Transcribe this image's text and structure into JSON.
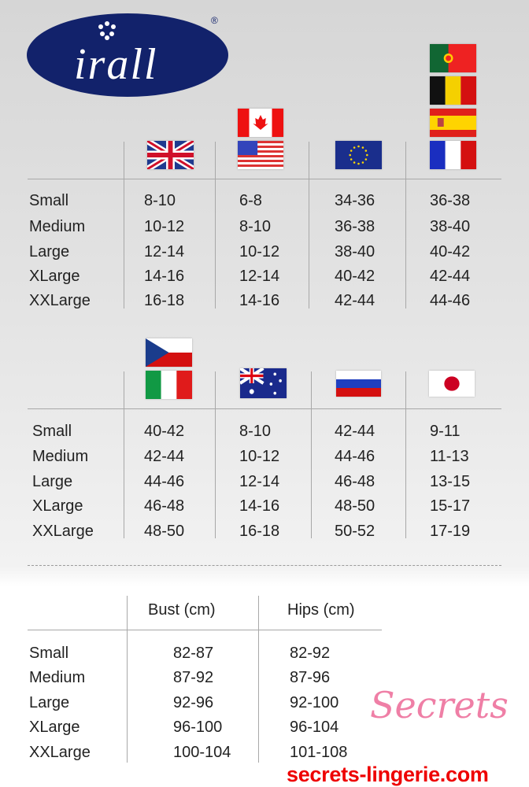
{
  "brand": {
    "name": "irall",
    "registered": "®"
  },
  "table1": {
    "columns": [
      {
        "flags": [
          "uk-flag"
        ]
      },
      {
        "flags": [
          "canada-flag",
          "usa-flag"
        ]
      },
      {
        "flags": [
          "eu-flag"
        ]
      },
      {
        "flags": [
          "portugal-flag",
          "belgium-flag",
          "spain-flag",
          "france-flag"
        ]
      }
    ],
    "rows": [
      {
        "size": "Small",
        "values": [
          "8-10",
          "6-8",
          "34-36",
          "36-38"
        ]
      },
      {
        "size": "Medium",
        "values": [
          "10-12",
          "8-10",
          "36-38",
          "38-40"
        ]
      },
      {
        "size": "Large",
        "values": [
          "12-14",
          "10-12",
          "38-40",
          "40-42"
        ]
      },
      {
        "size": "XLarge",
        "values": [
          "14-16",
          "12-14",
          "40-42",
          "42-44"
        ]
      },
      {
        "size": "XXLarge",
        "values": [
          "16-18",
          "14-16",
          "42-44",
          "44-46"
        ]
      }
    ]
  },
  "table2": {
    "columns": [
      {
        "flags": [
          "czech-flag",
          "italy-flag"
        ]
      },
      {
        "flags": [
          "australia-flag"
        ]
      },
      {
        "flags": [
          "russia-flag"
        ]
      },
      {
        "flags": [
          "japan-flag"
        ]
      }
    ],
    "rows": [
      {
        "size": "Small",
        "values": [
          "40-42",
          "8-10",
          "42-44",
          "9-11"
        ]
      },
      {
        "size": "Medium",
        "values": [
          "42-44",
          "10-12",
          "44-46",
          "11-13"
        ]
      },
      {
        "size": "Large",
        "values": [
          "44-46",
          "12-14",
          "46-48",
          "13-15"
        ]
      },
      {
        "size": "XLarge",
        "values": [
          "46-48",
          "14-16",
          "48-50",
          "15-17"
        ]
      },
      {
        "size": "XXLarge",
        "values": [
          "48-50",
          "16-18",
          "50-52",
          "17-19"
        ]
      }
    ]
  },
  "table3": {
    "headers": [
      "Bust (cm)",
      "Hips (cm)"
    ],
    "rows": [
      {
        "size": "Small",
        "values": [
          "82-87",
          "82-92"
        ]
      },
      {
        "size": "Medium",
        "values": [
          "87-92",
          "87-96"
        ]
      },
      {
        "size": "Large",
        "values": [
          "92-96",
          "92-100"
        ]
      },
      {
        "size": "XLarge",
        "values": [
          "96-100",
          "96-104"
        ]
      },
      {
        "size": "XXLarge",
        "values": [
          "100-104",
          "101-108"
        ]
      }
    ]
  },
  "watermark": {
    "script": "Secrets",
    "url": "secrets-lingerie.com",
    "color": "#ee0000",
    "script_color": "#ef7fa6"
  },
  "colors": {
    "logo": "#12226b"
  }
}
